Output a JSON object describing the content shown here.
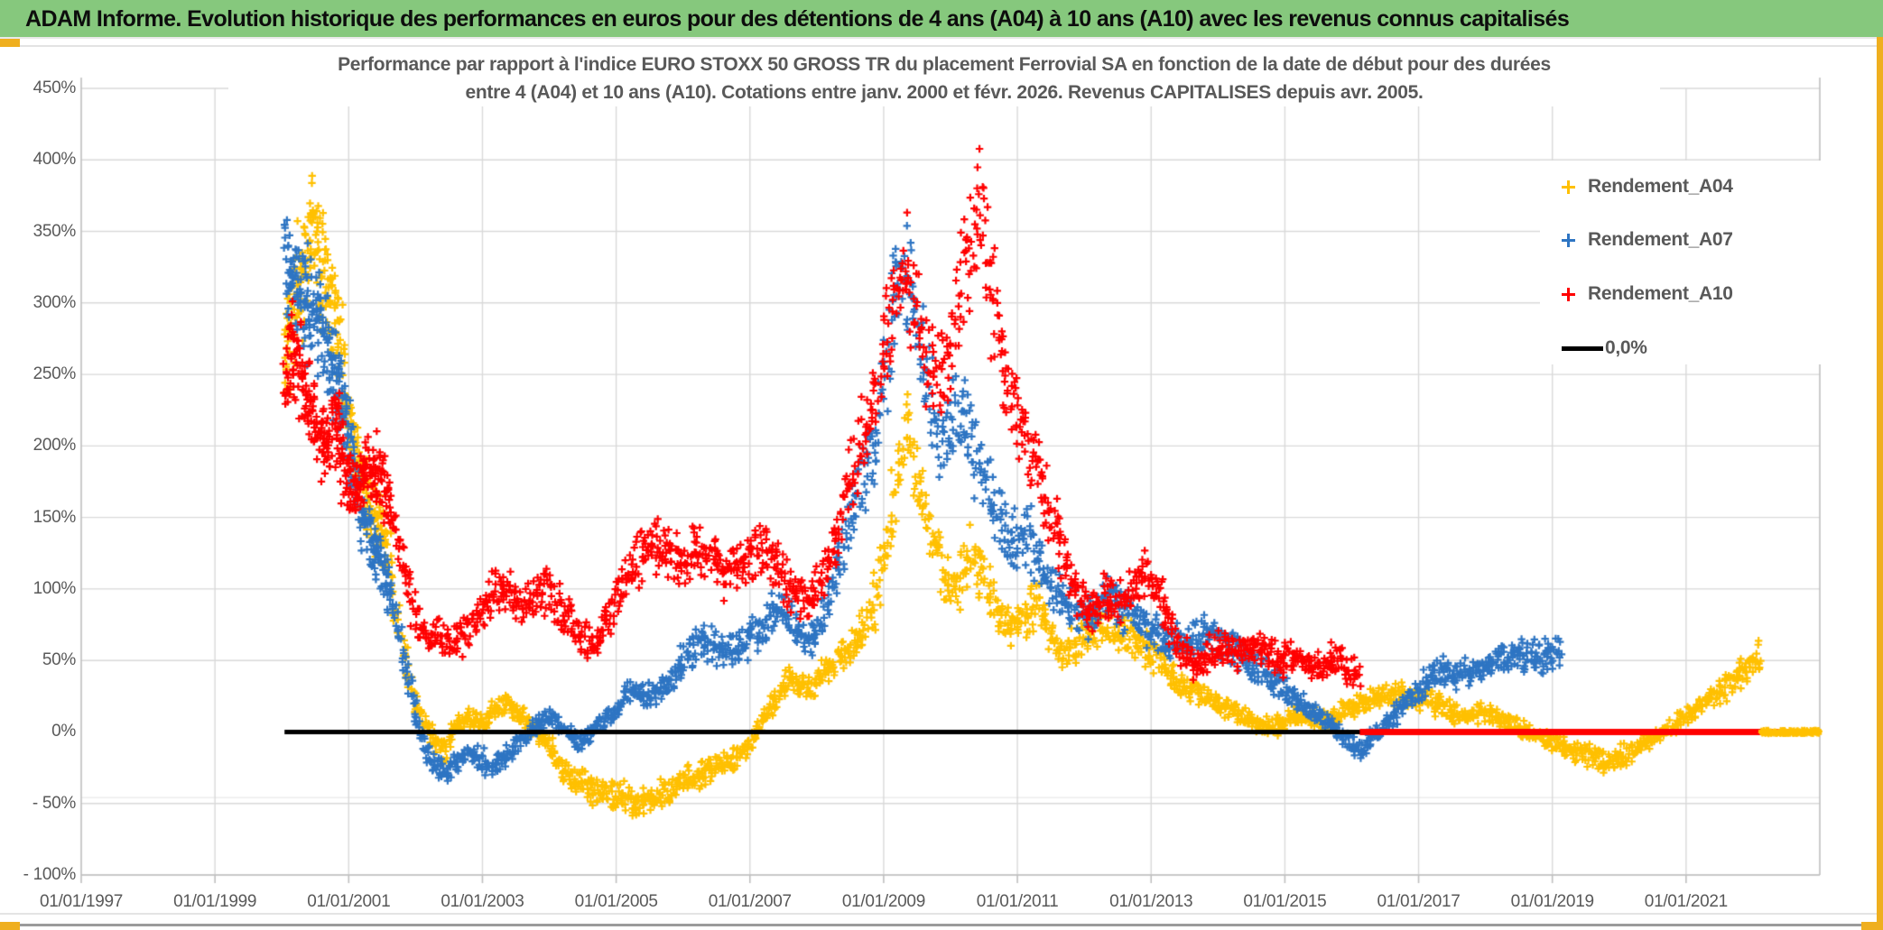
{
  "page": {
    "header": {
      "title": "ADAM Informe. Evolution historique des performances en euros pour des détentions de 4 ans (A04) à 10 ans (A10) avec les revenus connus capitalisés",
      "bg_color": "#86C87D"
    },
    "frame": {
      "accent_color": "#EFAF1F"
    }
  },
  "chart_data": {
    "type": "scatter",
    "title_line1": "Performance par rapport à l'indice EURO STOXX 50 GROSS TR  du placement Ferrovial SA en fonction de la date de début pour des durées",
    "title_line2": "entre 4 (A04) et 10 ans (A10). Cotations entre janv. 2000 et févr. 2026. Revenus CAPITALISES depuis avr. 2005.",
    "x_axis": {
      "tick_labels": [
        "01/01/1997",
        "01/01/1999",
        "01/01/2001",
        "01/01/2003",
        "01/01/2005",
        "01/01/2007",
        "01/01/2009",
        "01/01/2011",
        "01/01/2013",
        "01/01/2015",
        "01/01/2017",
        "01/01/2019",
        "01/01/2021"
      ],
      "tick_years": [
        1997,
        1999,
        2001,
        2003,
        2005,
        2007,
        2009,
        2011,
        2013,
        2015,
        2017,
        2019,
        2021
      ],
      "min_year": 1997,
      "max_year": 2023,
      "grid": true
    },
    "y_axis": {
      "tick_labels": [
        "450%",
        "400%",
        "350%",
        "300%",
        "250%",
        "200%",
        "150%",
        "100%",
        "50%",
        "0%",
        "- 50%",
        "- 100%"
      ],
      "tick_values": [
        450,
        400,
        350,
        300,
        250,
        200,
        150,
        100,
        50,
        0,
        -50,
        -100
      ],
      "min": -100,
      "max": 450,
      "unit": "%",
      "grid": true
    },
    "legend": [
      {
        "label": "Rendement_A04",
        "color": "#FFC000",
        "marker": "plus"
      },
      {
        "label": "Rendement_A07",
        "color": "#2E75C3",
        "marker": "plus"
      },
      {
        "label": "Rendement_A10",
        "color": "#FF0000",
        "marker": "plus"
      },
      {
        "label": "0,0%",
        "color": "#000000",
        "marker": "line"
      }
    ],
    "zero_line": {
      "label": "0,0%",
      "value": 0,
      "color": "#000000",
      "from_year": 2000.04,
      "to_year": 2023.0
    },
    "series": [
      {
        "name": "Rendement_A04",
        "color": "#FFC000",
        "first_date": "janv. 2000",
        "last_date": "févr. 2022",
        "zero_tail": {
          "from": 2022.12,
          "to": 2023.0,
          "style": "markers"
        },
        "points_year_pct": [
          [
            2000.04,
            260
          ],
          [
            2000.2,
            300
          ],
          [
            2000.45,
            350
          ],
          [
            2000.6,
            330
          ],
          [
            2000.8,
            300
          ],
          [
            2001.0,
            220
          ],
          [
            2001.2,
            170
          ],
          [
            2001.4,
            150
          ],
          [
            2001.6,
            120
          ],
          [
            2001.8,
            60
          ],
          [
            2002.0,
            20
          ],
          [
            2002.2,
            0
          ],
          [
            2002.4,
            -15
          ],
          [
            2002.6,
            5
          ],
          [
            2002.8,
            10
          ],
          [
            2003.0,
            5
          ],
          [
            2003.2,
            15
          ],
          [
            2003.4,
            20
          ],
          [
            2003.6,
            10
          ],
          [
            2003.8,
            0
          ],
          [
            2004.0,
            -10
          ],
          [
            2004.2,
            -25
          ],
          [
            2004.4,
            -35
          ],
          [
            2004.7,
            -40
          ],
          [
            2005.0,
            -45
          ],
          [
            2005.3,
            -50
          ],
          [
            2005.6,
            -45
          ],
          [
            2005.9,
            -38
          ],
          [
            2006.2,
            -30
          ],
          [
            2006.5,
            -25
          ],
          [
            2006.8,
            -18
          ],
          [
            2007.0,
            -8
          ],
          [
            2007.2,
            10
          ],
          [
            2007.4,
            25
          ],
          [
            2007.6,
            40
          ],
          [
            2007.8,
            30
          ],
          [
            2008.0,
            35
          ],
          [
            2008.2,
            45
          ],
          [
            2008.4,
            55
          ],
          [
            2008.6,
            65
          ],
          [
            2008.8,
            80
          ],
          [
            2009.0,
            115
          ],
          [
            2009.2,
            175
          ],
          [
            2009.35,
            215
          ],
          [
            2009.5,
            170
          ],
          [
            2009.7,
            140
          ],
          [
            2009.9,
            112
          ],
          [
            2010.1,
            100
          ],
          [
            2010.3,
            125
          ],
          [
            2010.5,
            105
          ],
          [
            2010.7,
            85
          ],
          [
            2010.9,
            70
          ],
          [
            2011.1,
            80
          ],
          [
            2011.3,
            90
          ],
          [
            2011.5,
            70
          ],
          [
            2011.7,
            55
          ],
          [
            2011.9,
            62
          ],
          [
            2012.1,
            70
          ],
          [
            2012.4,
            75
          ],
          [
            2012.7,
            65
          ],
          [
            2013.0,
            55
          ],
          [
            2013.3,
            40
          ],
          [
            2013.6,
            28
          ],
          [
            2013.9,
            22
          ],
          [
            2014.2,
            15
          ],
          [
            2014.5,
            8
          ],
          [
            2014.8,
            3
          ],
          [
            2015.0,
            8
          ],
          [
            2015.3,
            14
          ],
          [
            2015.6,
            6
          ],
          [
            2015.9,
            15
          ],
          [
            2016.2,
            22
          ],
          [
            2016.5,
            28
          ],
          [
            2016.8,
            25
          ],
          [
            2017.1,
            22
          ],
          [
            2017.4,
            17
          ],
          [
            2017.7,
            10
          ],
          [
            2018.0,
            14
          ],
          [
            2018.3,
            8
          ],
          [
            2018.6,
            2
          ],
          [
            2018.9,
            -4
          ],
          [
            2019.2,
            -10
          ],
          [
            2019.5,
            -16
          ],
          [
            2019.8,
            -22
          ],
          [
            2020.0,
            -18
          ],
          [
            2020.3,
            -10
          ],
          [
            2020.6,
            -2
          ],
          [
            2020.9,
            8
          ],
          [
            2021.2,
            18
          ],
          [
            2021.5,
            28
          ],
          [
            2021.8,
            38
          ],
          [
            2022.12,
            55
          ]
        ]
      },
      {
        "name": "Rendement_A07",
        "color": "#2E75C3",
        "first_date": "janv. 2000",
        "last_date": "févr. 2019",
        "points_year_pct": [
          [
            2000.04,
            330
          ],
          [
            2000.3,
            310
          ],
          [
            2000.6,
            280
          ],
          [
            2000.9,
            230
          ],
          [
            2001.2,
            150
          ],
          [
            2001.5,
            120
          ],
          [
            2001.8,
            60
          ],
          [
            2002.0,
            10
          ],
          [
            2002.2,
            -18
          ],
          [
            2002.4,
            -28
          ],
          [
            2002.6,
            -24
          ],
          [
            2002.8,
            -14
          ],
          [
            2003.0,
            -20
          ],
          [
            2003.2,
            -24
          ],
          [
            2003.5,
            -10
          ],
          [
            2003.8,
            5
          ],
          [
            2004.0,
            10
          ],
          [
            2004.3,
            0
          ],
          [
            2004.5,
            -8
          ],
          [
            2004.7,
            5
          ],
          [
            2005.0,
            15
          ],
          [
            2005.2,
            30
          ],
          [
            2005.5,
            25
          ],
          [
            2005.8,
            35
          ],
          [
            2006.0,
            50
          ],
          [
            2006.3,
            65
          ],
          [
            2006.6,
            55
          ],
          [
            2006.9,
            60
          ],
          [
            2007.2,
            75
          ],
          [
            2007.5,
            90
          ],
          [
            2007.7,
            65
          ],
          [
            2008.0,
            65
          ],
          [
            2008.2,
            95
          ],
          [
            2008.5,
            150
          ],
          [
            2008.7,
            180
          ],
          [
            2008.9,
            205
          ],
          [
            2009.05,
            260
          ],
          [
            2009.2,
            315
          ],
          [
            2009.35,
            325
          ],
          [
            2009.5,
            280
          ],
          [
            2009.7,
            235
          ],
          [
            2009.85,
            205
          ],
          [
            2010.0,
            210
          ],
          [
            2010.2,
            230
          ],
          [
            2010.4,
            190
          ],
          [
            2010.6,
            160
          ],
          [
            2010.8,
            140
          ],
          [
            2011.0,
            130
          ],
          [
            2011.2,
            135
          ],
          [
            2011.4,
            110
          ],
          [
            2011.6,
            95
          ],
          [
            2011.8,
            85
          ],
          [
            2012.0,
            80
          ],
          [
            2012.3,
            95
          ],
          [
            2012.6,
            85
          ],
          [
            2012.9,
            75
          ],
          [
            2013.2,
            65
          ],
          [
            2013.5,
            60
          ],
          [
            2013.8,
            70
          ],
          [
            2014.0,
            65
          ],
          [
            2014.3,
            55
          ],
          [
            2014.6,
            45
          ],
          [
            2014.9,
            35
          ],
          [
            2015.1,
            25
          ],
          [
            2015.4,
            15
          ],
          [
            2015.7,
            5
          ],
          [
            2015.9,
            -5
          ],
          [
            2016.1,
            -12
          ],
          [
            2016.3,
            -5
          ],
          [
            2016.5,
            5
          ],
          [
            2016.7,
            15
          ],
          [
            2017.0,
            30
          ],
          [
            2017.3,
            45
          ],
          [
            2017.6,
            40
          ],
          [
            2017.9,
            45
          ],
          [
            2018.2,
            50
          ],
          [
            2018.5,
            55
          ],
          [
            2018.8,
            50
          ],
          [
            2019.12,
            58
          ]
        ]
      },
      {
        "name": "Rendement_A10",
        "color": "#FF0000",
        "first_date": "janv. 2000",
        "last_date": "févr. 2016",
        "zero_tail": {
          "from": 2016.12,
          "to": 2023.0,
          "style": "thick-line"
        },
        "points_year_pct": [
          [
            2000.04,
            250
          ],
          [
            2000.2,
            270
          ],
          [
            2000.4,
            230
          ],
          [
            2000.6,
            200
          ],
          [
            2000.8,
            220
          ],
          [
            2001.0,
            170
          ],
          [
            2001.2,
            175
          ],
          [
            2001.4,
            185
          ],
          [
            2001.6,
            160
          ],
          [
            2001.8,
            120
          ],
          [
            2002.0,
            80
          ],
          [
            2002.2,
            65
          ],
          [
            2002.4,
            70
          ],
          [
            2002.6,
            60
          ],
          [
            2002.8,
            70
          ],
          [
            2003.0,
            85
          ],
          [
            2003.2,
            100
          ],
          [
            2003.4,
            95
          ],
          [
            2003.6,
            90
          ],
          [
            2003.8,
            95
          ],
          [
            2004.0,
            100
          ],
          [
            2004.2,
            85
          ],
          [
            2004.4,
            70
          ],
          [
            2004.6,
            60
          ],
          [
            2004.8,
            70
          ],
          [
            2005.0,
            90
          ],
          [
            2005.2,
            110
          ],
          [
            2005.4,
            125
          ],
          [
            2005.6,
            130
          ],
          [
            2005.8,
            125
          ],
          [
            2006.0,
            120
          ],
          [
            2006.2,
            125
          ],
          [
            2006.4,
            120
          ],
          [
            2006.6,
            110
          ],
          [
            2006.8,
            115
          ],
          [
            2007.0,
            125
          ],
          [
            2007.2,
            130
          ],
          [
            2007.4,
            120
          ],
          [
            2007.6,
            100
          ],
          [
            2007.8,
            90
          ],
          [
            2008.0,
            95
          ],
          [
            2008.2,
            120
          ],
          [
            2008.4,
            160
          ],
          [
            2008.6,
            190
          ],
          [
            2008.8,
            220
          ],
          [
            2009.0,
            270
          ],
          [
            2009.2,
            310
          ],
          [
            2009.35,
            320
          ],
          [
            2009.5,
            290
          ],
          [
            2009.65,
            260
          ],
          [
            2009.8,
            240
          ],
          [
            2009.95,
            255
          ],
          [
            2010.1,
            290
          ],
          [
            2010.25,
            340
          ],
          [
            2010.4,
            370
          ],
          [
            2010.55,
            330
          ],
          [
            2010.7,
            280
          ],
          [
            2010.85,
            245
          ],
          [
            2011.0,
            230
          ],
          [
            2011.15,
            205
          ],
          [
            2011.3,
            185
          ],
          [
            2011.5,
            150
          ],
          [
            2011.7,
            120
          ],
          [
            2011.9,
            95
          ],
          [
            2012.1,
            85
          ],
          [
            2012.3,
            95
          ],
          [
            2012.5,
            90
          ],
          [
            2012.7,
            100
          ],
          [
            2012.9,
            110
          ],
          [
            2013.1,
            95
          ],
          [
            2013.3,
            75
          ],
          [
            2013.5,
            55
          ],
          [
            2013.7,
            45
          ],
          [
            2013.9,
            55
          ],
          [
            2014.1,
            60
          ],
          [
            2014.3,
            55
          ],
          [
            2014.5,
            60
          ],
          [
            2014.7,
            55
          ],
          [
            2014.9,
            50
          ],
          [
            2015.1,
            55
          ],
          [
            2015.3,
            50
          ],
          [
            2015.5,
            45
          ],
          [
            2015.7,
            50
          ],
          [
            2015.9,
            45
          ],
          [
            2016.1,
            40
          ]
        ]
      }
    ],
    "render_hints": {
      "samples_per_year": 52,
      "markers_per_sample": 2,
      "early_dense_until": 2001.6,
      "jitter_base_pct": 7,
      "jitter_scale": 0.13,
      "jitter_max_pct": 55,
      "seed": 11,
      "grid_color": "#D9D9D9",
      "border_color": "#BFBFBF",
      "text_color": "#595959"
    }
  }
}
